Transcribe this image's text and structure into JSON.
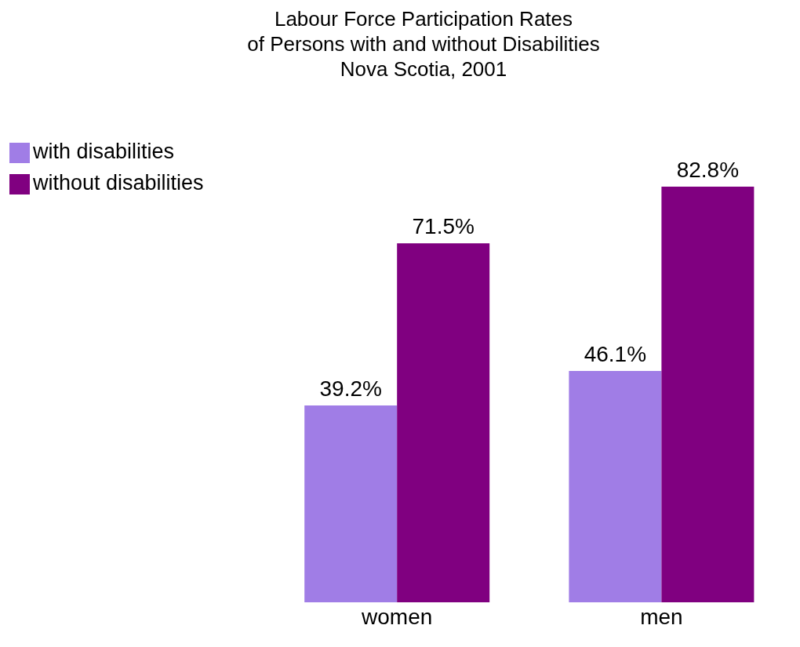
{
  "chart_data": {
    "type": "bar",
    "title": "Labour Force Participation Rates\nof Persons with and without Disabilities\nNova Scotia, 2001",
    "categories": [
      "women",
      "men"
    ],
    "series": [
      {
        "name": "with disabilities",
        "color": "#a07de6",
        "values": [
          39.2,
          46.1
        ],
        "value_labels": [
          "39.2%",
          "46.1%"
        ]
      },
      {
        "name": "without disabilities",
        "color": "#800080",
        "values": [
          71.5,
          82.8
        ],
        "value_labels": [
          "71.5%",
          "82.8%"
        ]
      }
    ],
    "legend": "top left"
  }
}
